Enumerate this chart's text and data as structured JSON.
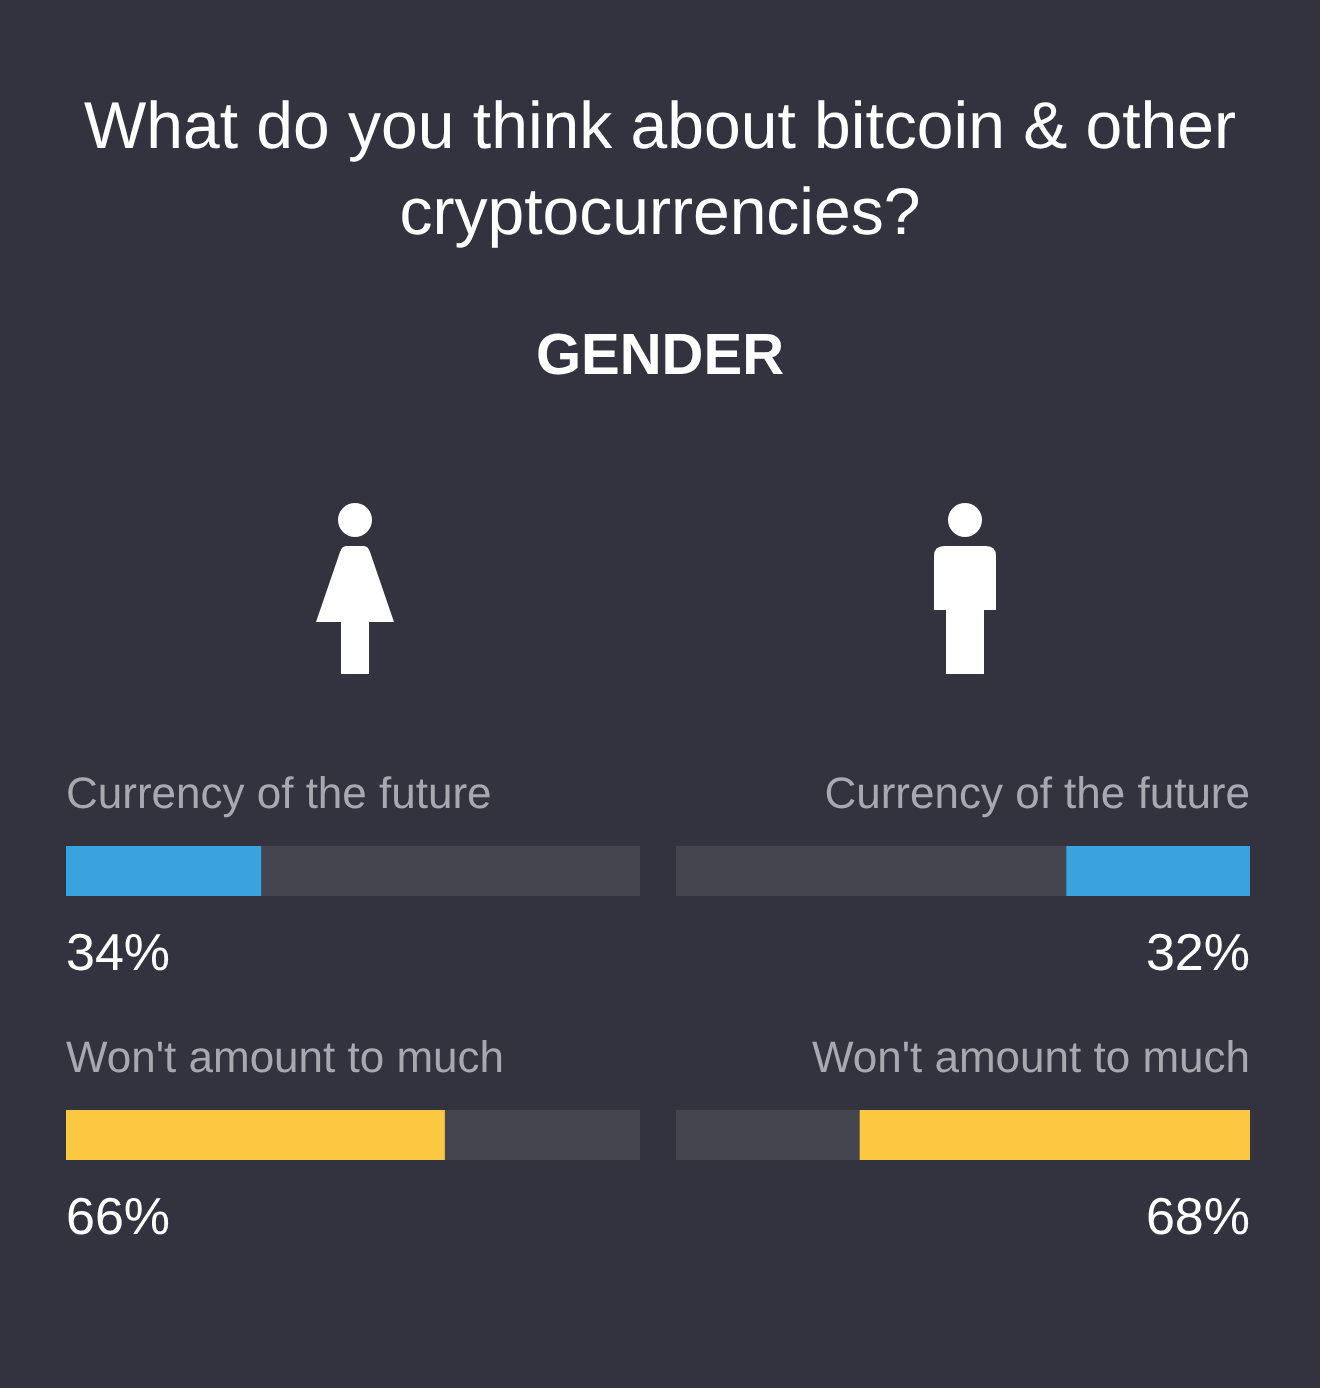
{
  "chart_data": [
    {
      "type": "bar",
      "orientation": "horizontal",
      "title": "What do you think about bitcoin & other cryptocurrencies?",
      "subtitle": "GENDER",
      "categories": [
        "Currency of the future",
        "Won't amount to much"
      ],
      "values": [
        34,
        66
      ],
      "colors": [
        "#38a4dd",
        "#fcc842"
      ],
      "value_labels": [
        "34%",
        "66%"
      ],
      "xlim": [
        0,
        100
      ],
      "tick_labels": "y"
    },
    {
      "type": "bar",
      "orientation": "horizontal",
      "categories": [
        "Currency of the future",
        "Won't amount to much"
      ],
      "values": [
        32,
        68
      ],
      "colors": [
        "#38a4dd",
        "#fcc842"
      ],
      "value_labels": [
        "32%",
        "68%"
      ],
      "xlim": [
        100,
        0
      ],
      "tick_labels": "y"
    }
  ]
}
